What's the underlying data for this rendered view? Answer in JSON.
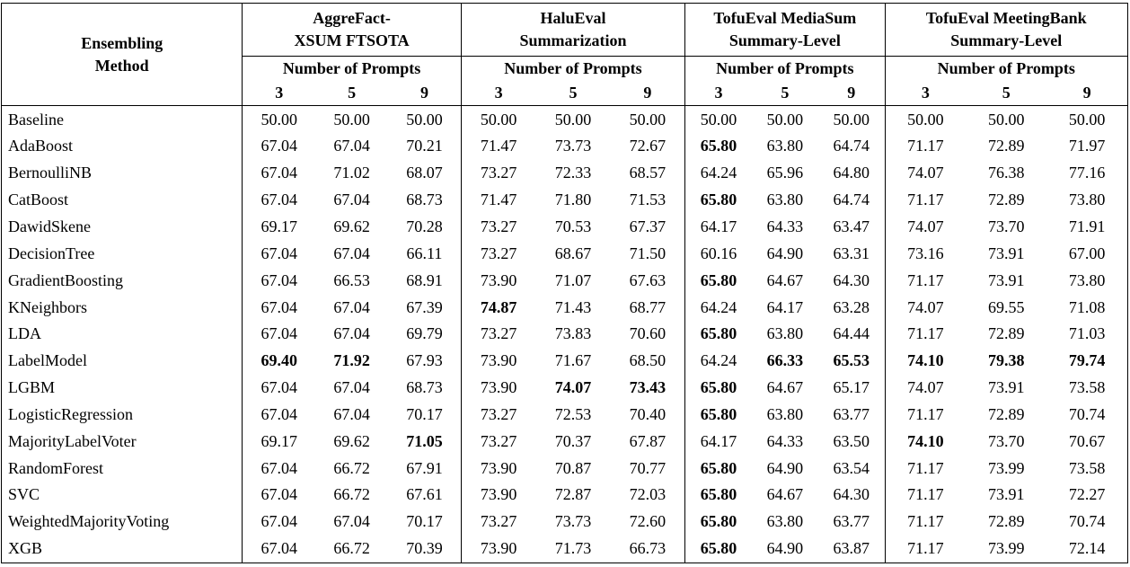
{
  "table": {
    "method_header_line1": "Ensembling",
    "method_header_line2": "Method",
    "groups": [
      {
        "title_line1": "AggreFact-",
        "title_line2": "XSUM FTSOTA",
        "subheader": "Number of Prompts",
        "prompts": [
          "3",
          "5",
          "9"
        ]
      },
      {
        "title_line1": "HaluEval",
        "title_line2": "Summarization",
        "subheader": "Number of Prompts",
        "prompts": [
          "3",
          "5",
          "9"
        ]
      },
      {
        "title_line1": "TofuEval MediaSum",
        "title_line2": "Summary-Level",
        "subheader": "Number of Prompts",
        "prompts": [
          "3",
          "5",
          "9"
        ]
      },
      {
        "title_line1": "TofuEval MeetingBank",
        "title_line2": "Summary-Level",
        "subheader": "Number of Prompts",
        "prompts": [
          "3",
          "5",
          "9"
        ]
      }
    ],
    "colors": {
      "border": "#000000",
      "text": "#000000",
      "background": "#ffffff"
    },
    "rows": [
      {
        "method": "Baseline",
        "values": [
          "50.00",
          "50.00",
          "50.00",
          "50.00",
          "50.00",
          "50.00",
          "50.00",
          "50.00",
          "50.00",
          "50.00",
          "50.00",
          "50.00"
        ],
        "bold": [
          false,
          false,
          false,
          false,
          false,
          false,
          false,
          false,
          false,
          false,
          false,
          false
        ]
      },
      {
        "method": "AdaBoost",
        "values": [
          "67.04",
          "67.04",
          "70.21",
          "71.47",
          "73.73",
          "72.67",
          "65.80",
          "63.80",
          "64.74",
          "71.17",
          "72.89",
          "71.97"
        ],
        "bold": [
          false,
          false,
          false,
          false,
          false,
          false,
          true,
          false,
          false,
          false,
          false,
          false
        ]
      },
      {
        "method": "BernoulliNB",
        "values": [
          "67.04",
          "71.02",
          "68.07",
          "73.27",
          "72.33",
          "68.57",
          "64.24",
          "65.96",
          "64.80",
          "74.07",
          "76.38",
          "77.16"
        ],
        "bold": [
          false,
          false,
          false,
          false,
          false,
          false,
          false,
          false,
          false,
          false,
          false,
          false
        ]
      },
      {
        "method": "CatBoost",
        "values": [
          "67.04",
          "67.04",
          "68.73",
          "71.47",
          "71.80",
          "71.53",
          "65.80",
          "63.80",
          "64.74",
          "71.17",
          "72.89",
          "73.80"
        ],
        "bold": [
          false,
          false,
          false,
          false,
          false,
          false,
          true,
          false,
          false,
          false,
          false,
          false
        ]
      },
      {
        "method": "DawidSkene",
        "values": [
          "69.17",
          "69.62",
          "70.28",
          "73.27",
          "70.53",
          "67.37",
          "64.17",
          "64.33",
          "63.47",
          "74.07",
          "73.70",
          "71.91"
        ],
        "bold": [
          false,
          false,
          false,
          false,
          false,
          false,
          false,
          false,
          false,
          false,
          false,
          false
        ]
      },
      {
        "method": "DecisionTree",
        "values": [
          "67.04",
          "67.04",
          "66.11",
          "73.27",
          "68.67",
          "71.50",
          "60.16",
          "64.90",
          "63.31",
          "73.16",
          "73.91",
          "67.00"
        ],
        "bold": [
          false,
          false,
          false,
          false,
          false,
          false,
          false,
          false,
          false,
          false,
          false,
          false
        ]
      },
      {
        "method": "GradientBoosting",
        "values": [
          "67.04",
          "66.53",
          "68.91",
          "73.90",
          "71.07",
          "67.63",
          "65.80",
          "64.67",
          "64.30",
          "71.17",
          "73.91",
          "73.80"
        ],
        "bold": [
          false,
          false,
          false,
          false,
          false,
          false,
          true,
          false,
          false,
          false,
          false,
          false
        ]
      },
      {
        "method": "KNeighbors",
        "values": [
          "67.04",
          "67.04",
          "67.39",
          "74.87",
          "71.43",
          "68.77",
          "64.24",
          "64.17",
          "63.28",
          "74.07",
          "69.55",
          "71.08"
        ],
        "bold": [
          false,
          false,
          false,
          true,
          false,
          false,
          false,
          false,
          false,
          false,
          false,
          false
        ]
      },
      {
        "method": "LDA",
        "values": [
          "67.04",
          "67.04",
          "69.79",
          "73.27",
          "73.83",
          "70.60",
          "65.80",
          "63.80",
          "64.44",
          "71.17",
          "72.89",
          "71.03"
        ],
        "bold": [
          false,
          false,
          false,
          false,
          false,
          false,
          true,
          false,
          false,
          false,
          false,
          false
        ]
      },
      {
        "method": "LabelModel",
        "values": [
          "69.40",
          "71.92",
          "67.93",
          "73.90",
          "71.67",
          "68.50",
          "64.24",
          "66.33",
          "65.53",
          "74.10",
          "79.38",
          "79.74"
        ],
        "bold": [
          true,
          true,
          false,
          false,
          false,
          false,
          false,
          true,
          true,
          true,
          true,
          true
        ]
      },
      {
        "method": "LGBM",
        "values": [
          "67.04",
          "67.04",
          "68.73",
          "73.90",
          "74.07",
          "73.43",
          "65.80",
          "64.67",
          "65.17",
          "74.07",
          "73.91",
          "73.58"
        ],
        "bold": [
          false,
          false,
          false,
          false,
          true,
          true,
          true,
          false,
          false,
          false,
          false,
          false
        ]
      },
      {
        "method": "LogisticRegression",
        "values": [
          "67.04",
          "67.04",
          "70.17",
          "73.27",
          "72.53",
          "70.40",
          "65.80",
          "63.80",
          "63.77",
          "71.17",
          "72.89",
          "70.74"
        ],
        "bold": [
          false,
          false,
          false,
          false,
          false,
          false,
          true,
          false,
          false,
          false,
          false,
          false
        ]
      },
      {
        "method": "MajorityLabelVoter",
        "values": [
          "69.17",
          "69.62",
          "71.05",
          "73.27",
          "70.37",
          "67.87",
          "64.17",
          "64.33",
          "63.50",
          "74.10",
          "73.70",
          "70.67"
        ],
        "bold": [
          false,
          false,
          true,
          false,
          false,
          false,
          false,
          false,
          false,
          true,
          false,
          false
        ]
      },
      {
        "method": "RandomForest",
        "values": [
          "67.04",
          "66.72",
          "67.91",
          "73.90",
          "70.87",
          "70.77",
          "65.80",
          "64.90",
          "63.54",
          "71.17",
          "73.99",
          "73.58"
        ],
        "bold": [
          false,
          false,
          false,
          false,
          false,
          false,
          true,
          false,
          false,
          false,
          false,
          false
        ]
      },
      {
        "method": "SVC",
        "values": [
          "67.04",
          "66.72",
          "67.61",
          "73.90",
          "72.87",
          "72.03",
          "65.80",
          "64.67",
          "64.30",
          "71.17",
          "73.91",
          "72.27"
        ],
        "bold": [
          false,
          false,
          false,
          false,
          false,
          false,
          true,
          false,
          false,
          false,
          false,
          false
        ]
      },
      {
        "method": "WeightedMajorityVoting",
        "values": [
          "67.04",
          "67.04",
          "70.17",
          "73.27",
          "73.73",
          "72.60",
          "65.80",
          "63.80",
          "63.77",
          "71.17",
          "72.89",
          "70.74"
        ],
        "bold": [
          false,
          false,
          false,
          false,
          false,
          false,
          true,
          false,
          false,
          false,
          false,
          false
        ]
      },
      {
        "method": "XGB",
        "values": [
          "67.04",
          "66.72",
          "70.39",
          "73.90",
          "71.73",
          "66.73",
          "65.80",
          "64.90",
          "63.87",
          "71.17",
          "73.99",
          "72.14"
        ],
        "bold": [
          false,
          false,
          false,
          false,
          false,
          false,
          true,
          false,
          false,
          false,
          false,
          false
        ]
      }
    ]
  }
}
